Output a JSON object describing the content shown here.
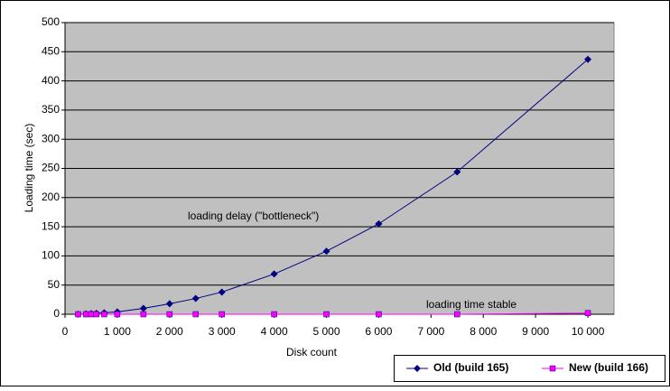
{
  "chart_data": {
    "type": "line",
    "x_label": "Disk count",
    "y_label": "Loading time (sec)",
    "annotations": [
      "loading delay (\"bottleneck\")",
      "loading time stable"
    ],
    "x": [
      250,
      400,
      500,
      600,
      750,
      1000,
      1500,
      2000,
      2500,
      3000,
      4000,
      5000,
      6000,
      7500,
      10000
    ],
    "series": [
      {
        "name": "Old (build 165)",
        "color": "#000080",
        "values": [
          0,
          0.5,
          1,
          1.5,
          2.5,
          4,
          10,
          18,
          27,
          38,
          69,
          108,
          155,
          244,
          437
        ]
      },
      {
        "name": "New (build 166)",
        "color": "#ff00ff",
        "values": [
          0,
          0,
          0,
          0,
          0,
          0,
          0,
          0,
          0,
          0,
          0,
          0,
          0,
          0,
          2
        ]
      }
    ],
    "xlim": [
      0,
      10500
    ],
    "ylim": [
      0,
      500
    ],
    "xticks": [
      0,
      {
        "value": 1000,
        "label": "1 000"
      },
      {
        "value": 2000,
        "label": "2 000"
      },
      {
        "value": 3000,
        "label": "3 000"
      },
      {
        "value": 4000,
        "label": "4 000"
      },
      {
        "value": 5000,
        "label": "5 000"
      },
      {
        "value": 6000,
        "label": "6 000"
      },
      {
        "value": 7000,
        "label": "7 000"
      },
      {
        "value": 8000,
        "label": "8 000"
      },
      {
        "value": 9000,
        "label": "9 000"
      },
      {
        "value": 10000,
        "label": "10 000"
      }
    ],
    "yticks": [
      0,
      50,
      100,
      150,
      200,
      250,
      300,
      350,
      400,
      450,
      500
    ],
    "grid": true,
    "legend": "bottom-right"
  }
}
